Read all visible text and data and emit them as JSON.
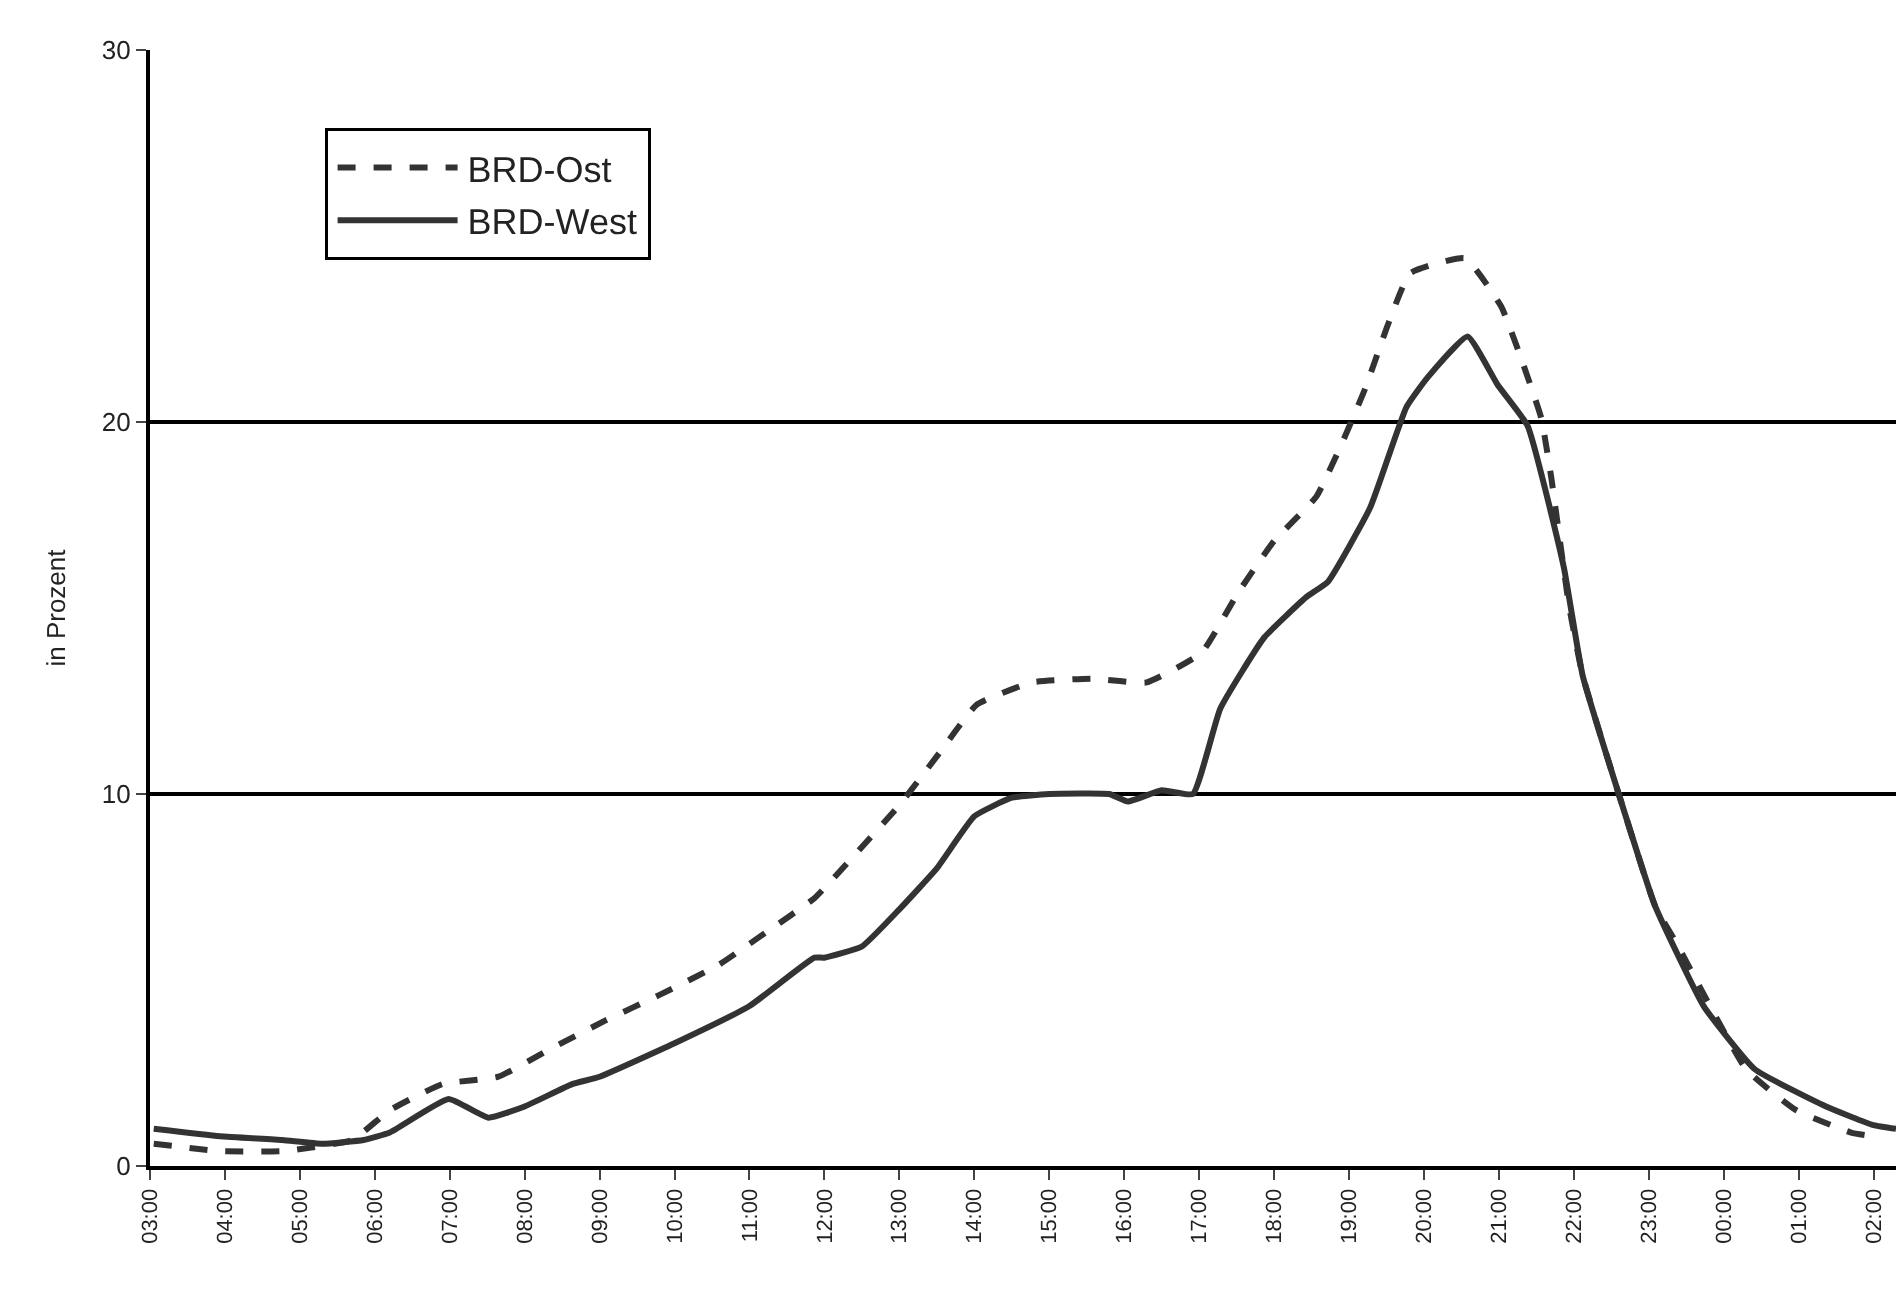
{
  "chart_data": {
    "type": "line",
    "ylabel": "in Prozent",
    "xlim": [
      "2000-01-01T03:00",
      "2000-01-02T02:18"
    ],
    "ylim": [
      0,
      30
    ],
    "yticks": [
      0,
      10,
      20,
      30
    ],
    "xticks": [
      {
        "value": "2000-01-01T03:00",
        "label": "03:00"
      },
      {
        "value": "2000-01-01T04:00",
        "label": "04:00"
      },
      {
        "value": "2000-01-01T05:00",
        "label": "05:00"
      },
      {
        "value": "2000-01-01T06:00",
        "label": "06:00"
      },
      {
        "value": "2000-01-01T07:00",
        "label": "07:00"
      },
      {
        "value": "2000-01-01T08:00",
        "label": "08:00"
      },
      {
        "value": "2000-01-01T09:00",
        "label": "09:00"
      },
      {
        "value": "2000-01-01T10:00",
        "label": "10:00"
      },
      {
        "value": "2000-01-01T11:00",
        "label": "11:00"
      },
      {
        "value": "2000-01-01T12:00",
        "label": "12:00"
      },
      {
        "value": "2000-01-01T13:00",
        "label": "13:00"
      },
      {
        "value": "2000-01-01T14:00",
        "label": "14:00"
      },
      {
        "value": "2000-01-01T15:00",
        "label": "15:00"
      },
      {
        "value": "2000-01-01T16:00",
        "label": "16:00"
      },
      {
        "value": "2000-01-01T17:00",
        "label": "17:00"
      },
      {
        "value": "2000-01-01T18:00",
        "label": "18:00"
      },
      {
        "value": "2000-01-01T19:00",
        "label": "19:00"
      },
      {
        "value": "2000-01-01T20:00",
        "label": "20:00"
      },
      {
        "value": "2000-01-01T21:00",
        "label": "21:00"
      },
      {
        "value": "2000-01-01T22:00",
        "label": "22:00"
      },
      {
        "value": "2000-01-01T23:00",
        "label": "23:00"
      },
      {
        "value": "2000-01-02T00:00",
        "label": "00:00"
      },
      {
        "value": "2000-01-02T01:00",
        "label": "01:00"
      },
      {
        "value": "2000-01-02T02:00",
        "label": "02:00"
      }
    ],
    "grid": "y",
    "legend": "top left",
    "marker": "none",
    "series": [
      {
        "name": "BRD-Ost",
        "color": "#333333",
        "line_style": "dashed",
        "x": [
          "2000-01-01T03:03",
          "2000-01-01T03:56",
          "2000-01-01T04:46",
          "2000-01-01T05:42",
          "2000-01-01T06:12",
          "2000-01-01T06:54",
          "2000-01-01T07:39",
          "2000-01-01T08:18",
          "2000-01-01T09:04",
          "2000-01-01T09:48",
          "2000-01-01T10:35",
          "2000-01-01T11:14",
          "2000-01-01T11:52",
          "2000-01-01T12:28",
          "2000-01-01T13:00",
          "2000-01-01T13:32",
          "2000-01-01T14:02",
          "2000-01-01T14:46",
          "2000-01-01T15:35",
          "2000-01-01T16:18",
          "2000-01-01T17:02",
          "2000-01-01T17:31",
          "2000-01-01T18:00",
          "2000-01-01T18:34",
          "2000-01-01T18:54",
          "2000-01-01T19:13",
          "2000-01-01T19:31",
          "2000-01-01T19:49",
          "2000-01-01T20:33",
          "2000-01-01T21:02",
          "2000-01-01T21:19",
          "2000-01-01T21:34",
          "2000-01-01T21:42",
          "2000-01-01T21:56",
          "2000-01-01T22:07",
          "2000-01-01T22:36",
          "2000-01-01T23:05",
          "2000-01-01T23:22",
          "2000-01-02T00:18",
          "2000-01-02T00:58",
          "2000-01-02T01:42",
          "2000-01-02T02:00"
        ],
        "values": [
          0.6,
          0.4,
          0.4,
          0.7,
          1.5,
          2.2,
          2.4,
          3.1,
          3.9,
          4.6,
          5.4,
          6.3,
          7.2,
          8.5,
          9.7,
          11.1,
          12.4,
          13.0,
          13.1,
          13.0,
          13.8,
          15.4,
          16.8,
          18.0,
          19.4,
          20.9,
          22.6,
          24.0,
          24.4,
          23.1,
          21.6,
          20.1,
          18.5,
          15.1,
          13.2,
          10.0,
          7.0,
          6.0,
          2.6,
          1.5,
          0.9,
          0.8
        ]
      },
      {
        "name": "BRD-West",
        "color": "#333333",
        "line_style": "solid",
        "x": [
          "2000-01-01T03:03",
          "2000-01-01T03:56",
          "2000-01-01T04:46",
          "2000-01-01T05:18",
          "2000-01-01T05:51",
          "2000-01-01T06:12",
          "2000-01-01T06:59",
          "2000-01-01T07:31",
          "2000-01-01T08:00",
          "2000-01-01T08:38",
          "2000-01-01T09:00",
          "2000-01-01T10:00",
          "2000-01-01T11:00",
          "2000-01-01T11:52",
          "2000-01-01T12:00",
          "2000-01-01T12:30",
          "2000-01-01T13:00",
          "2000-01-01T13:30",
          "2000-01-01T14:00",
          "2000-01-01T14:30",
          "2000-01-01T15:00",
          "2000-01-01T15:48",
          "2000-01-01T16:03",
          "2000-01-01T16:30",
          "2000-01-01T16:55",
          "2000-01-01T17:17",
          "2000-01-01T17:52",
          "2000-01-01T18:26",
          "2000-01-01T18:43",
          "2000-01-01T19:17",
          "2000-01-01T19:46",
          "2000-01-01T20:03",
          "2000-01-01T20:35",
          "2000-01-01T20:59",
          "2000-01-01T21:23",
          "2000-01-01T21:52",
          "2000-01-01T22:07",
          "2000-01-01T22:36",
          "2000-01-01T23:05",
          "2000-01-01T23:44",
          "2000-01-02T00:25",
          "2000-01-02T01:22",
          "2000-01-02T02:00",
          "2000-01-02T02:18"
        ],
        "values": [
          1.0,
          0.8,
          0.7,
          0.6,
          0.7,
          0.9,
          1.8,
          1.3,
          1.6,
          2.2,
          2.4,
          3.3,
          4.3,
          5.6,
          5.6,
          5.9,
          6.9,
          8.0,
          9.4,
          9.9,
          10.0,
          10.0,
          9.8,
          10.1,
          10.0,
          12.3,
          14.2,
          15.3,
          15.7,
          17.7,
          20.4,
          21.2,
          22.3,
          21.0,
          19.9,
          16.1,
          13.2,
          10.0,
          7.0,
          4.3,
          2.6,
          1.6,
          1.1,
          1.0
        ]
      }
    ]
  }
}
